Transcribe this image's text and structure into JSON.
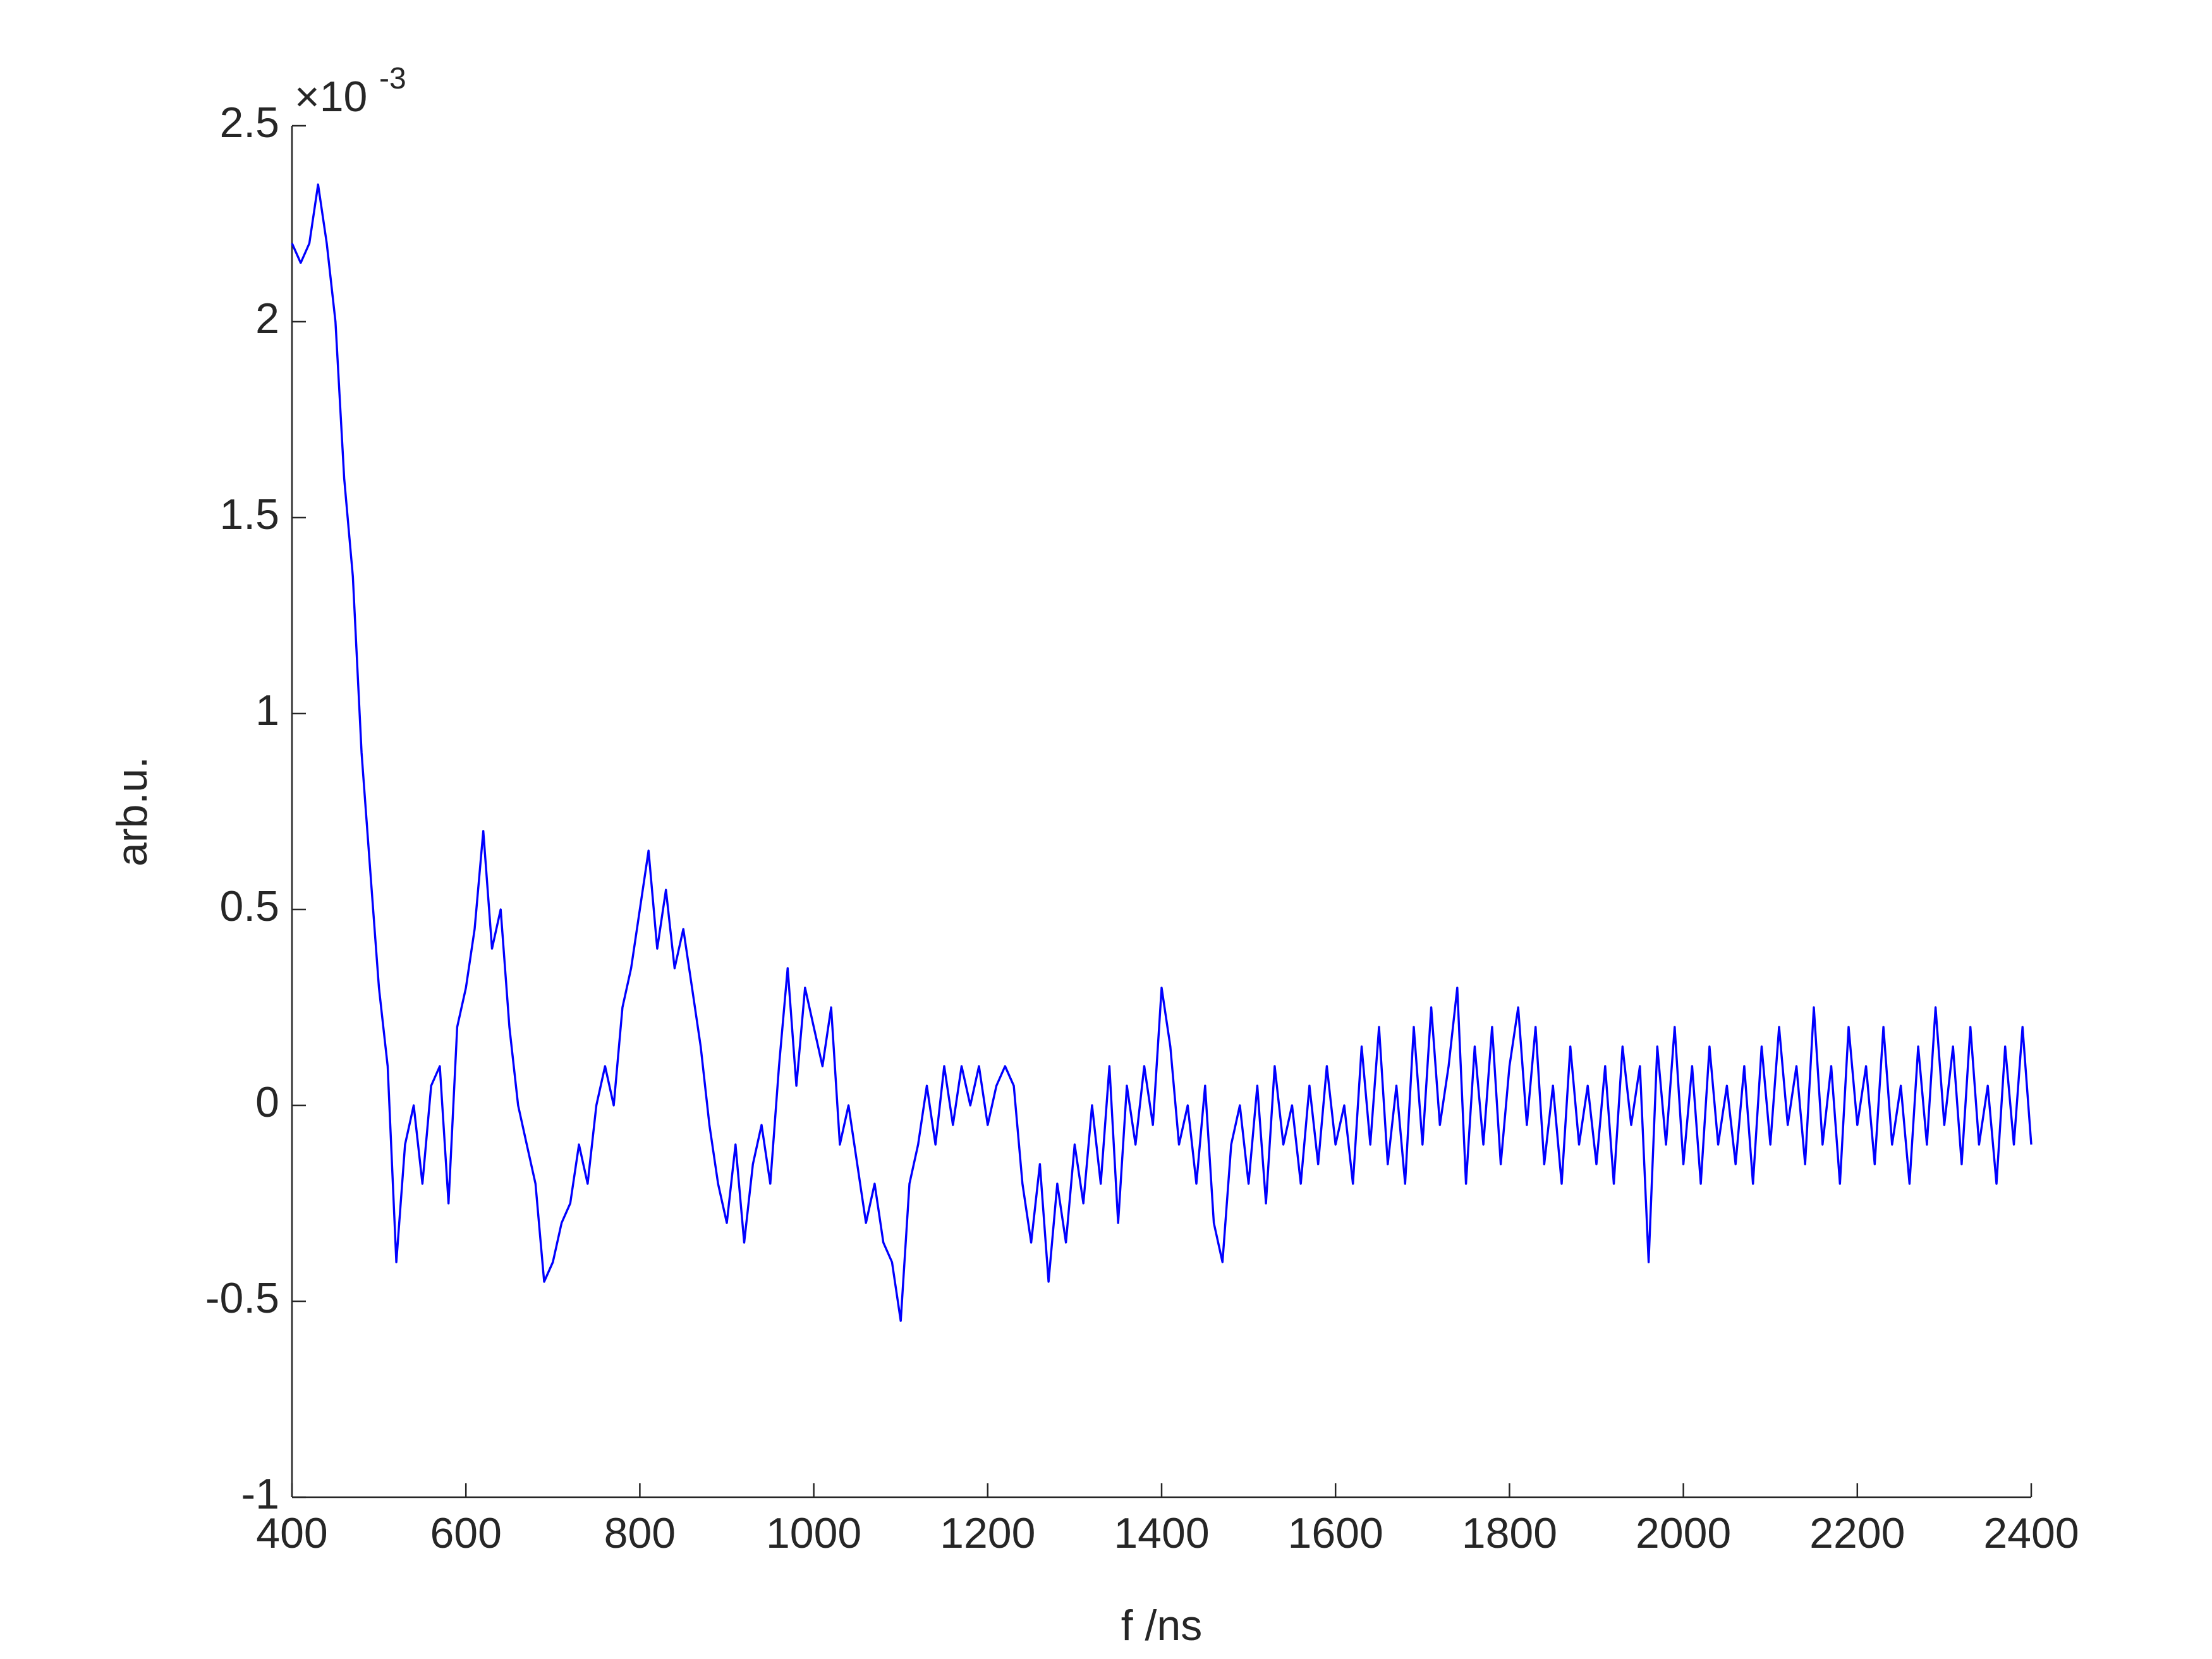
{
  "chart_data": {
    "type": "line",
    "x_label": "f /ns",
    "y_label": "arb.u.",
    "y_multiplier_base": "×10",
    "y_multiplier_exponent": "-3",
    "x": [
      400,
      410,
      420,
      430,
      440,
      450,
      460,
      470,
      480,
      490,
      500,
      510,
      520,
      530,
      540,
      550,
      560,
      570,
      580,
      590,
      600,
      610,
      620,
      630,
      640,
      650,
      660,
      670,
      680,
      690,
      700,
      710,
      720,
      730,
      740,
      750,
      760,
      770,
      780,
      790,
      800,
      810,
      820,
      830,
      840,
      850,
      860,
      870,
      880,
      890,
      900,
      910,
      920,
      930,
      940,
      950,
      960,
      970,
      980,
      990,
      1000,
      1010,
      1020,
      1030,
      1040,
      1050,
      1060,
      1070,
      1080,
      1090,
      1100,
      1110,
      1120,
      1130,
      1140,
      1150,
      1160,
      1170,
      1180,
      1190,
      1200,
      1210,
      1220,
      1230,
      1240,
      1250,
      1260,
      1270,
      1280,
      1290,
      1300,
      1310,
      1320,
      1330,
      1340,
      1350,
      1360,
      1370,
      1380,
      1390,
      1400,
      1410,
      1420,
      1430,
      1440,
      1450,
      1460,
      1470,
      1480,
      1490,
      1500,
      1510,
      1520,
      1530,
      1540,
      1550,
      1560,
      1570,
      1580,
      1590,
      1600,
      1610,
      1620,
      1630,
      1640,
      1650,
      1660,
      1670,
      1680,
      1690,
      1700,
      1710,
      1720,
      1730,
      1740,
      1750,
      1760,
      1770,
      1780,
      1790,
      1800,
      1810,
      1820,
      1830,
      1840,
      1850,
      1860,
      1870,
      1880,
      1890,
      1900,
      1910,
      1920,
      1930,
      1940,
      1950,
      1960,
      1970,
      1980,
      1990,
      2000,
      2010,
      2020,
      2030,
      2040,
      2050,
      2060,
      2070,
      2080,
      2090,
      2100,
      2110,
      2120,
      2130,
      2140,
      2150,
      2160,
      2170,
      2180,
      2190,
      2200,
      2210,
      2220,
      2230,
      2240,
      2250,
      2260,
      2270,
      2280,
      2290,
      2300,
      2310,
      2320,
      2330,
      2340,
      2350,
      2360,
      2370,
      2380,
      2390,
      2400
    ],
    "series": [
      {
        "color": "#0000ff",
        "values": [
          2.2,
          2.15,
          2.2,
          2.35,
          2.2,
          2.0,
          1.6,
          1.35,
          0.9,
          0.6,
          0.3,
          0.1,
          -0.4,
          -0.1,
          0,
          -0.2,
          0.05,
          0.1,
          -0.25,
          0.2,
          0.3,
          0.45,
          0.7,
          0.4,
          0.5,
          0.2,
          0,
          -0.1,
          -0.2,
          -0.45,
          -0.4,
          -0.3,
          -0.25,
          -0.1,
          -0.2,
          0,
          0.1,
          0,
          0.25,
          0.35,
          0.5,
          0.65,
          0.4,
          0.55,
          0.35,
          0.45,
          0.3,
          0.15,
          -0.05,
          -0.2,
          -0.3,
          -0.1,
          -0.35,
          -0.15,
          -0.05,
          -0.2,
          0.1,
          0.35,
          0.05,
          0.3,
          0.2,
          0.1,
          0.25,
          -0.1,
          0,
          -0.15,
          -0.3,
          -0.2,
          -0.35,
          -0.4,
          -0.55,
          -0.2,
          -0.1,
          0.05,
          -0.1,
          0.1,
          -0.05,
          0.1,
          0,
          0.1,
          -0.05,
          0.05,
          0.1,
          0.05,
          -0.2,
          -0.35,
          -0.15,
          -0.45,
          -0.2,
          -0.35,
          -0.1,
          -0.25,
          0,
          -0.2,
          0.1,
          -0.3,
          0.05,
          -0.1,
          0.1,
          -0.05,
          0.3,
          0.15,
          -0.1,
          0,
          -0.2,
          0.05,
          -0.3,
          -0.4,
          -0.1,
          0,
          -0.2,
          0.05,
          -0.25,
          0.1,
          -0.1,
          0,
          -0.2,
          0.05,
          -0.15,
          0.1,
          -0.1,
          0,
          -0.2,
          0.15,
          -0.1,
          0.2,
          -0.15,
          0.05,
          -0.2,
          0.2,
          -0.1,
          0.25,
          -0.05,
          0.1,
          0.3,
          -0.2,
          0.15,
          -0.1,
          0.2,
          -0.15,
          0.1,
          0.25,
          -0.05,
          0.2,
          -0.15,
          0.05,
          -0.2,
          0.15,
          -0.1,
          0.05,
          -0.15,
          0.1,
          -0.2,
          0.15,
          -0.05,
          0.1,
          -0.4,
          0.15,
          -0.1,
          0.2,
          -0.15,
          0.1,
          -0.2,
          0.15,
          -0.1,
          0.05,
          -0.15,
          0.1,
          -0.2,
          0.15,
          -0.1,
          0.2,
          -0.05,
          0.1,
          -0.15,
          0.25,
          -0.1,
          0.1,
          -0.2,
          0.2,
          -0.05,
          0.1,
          -0.15,
          0.2,
          -0.1,
          0.05,
          -0.2,
          0.15,
          -0.1,
          0.25,
          -0.05,
          0.15,
          -0.15,
          0.2,
          -0.1,
          0.05,
          -0.2,
          0.15,
          -0.1,
          0.2,
          -0.1
        ]
      }
    ],
    "xlim": [
      400,
      2400
    ],
    "xticks": [
      400,
      600,
      800,
      1000,
      1200,
      1400,
      1600,
      1800,
      2000,
      2200,
      2400
    ],
    "ylim": [
      -1,
      2.5
    ],
    "yticks": [
      -1,
      -0.5,
      0,
      0.5,
      1,
      1.5,
      2,
      2.5
    ]
  }
}
